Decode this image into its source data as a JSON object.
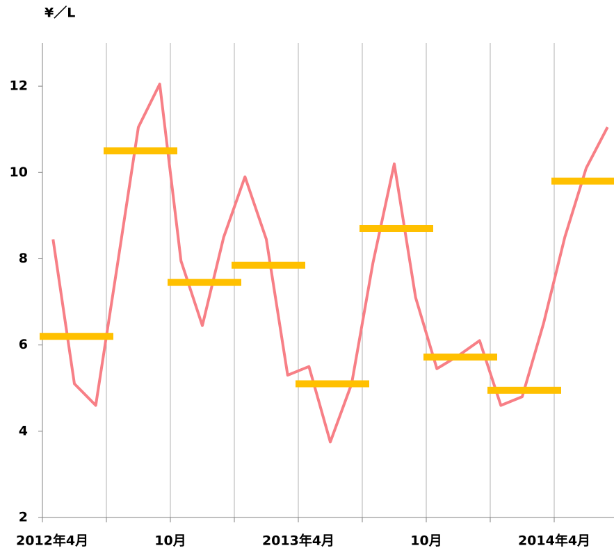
{
  "chart_data": {
    "type": "line",
    "y_label": "¥／L",
    "x": [
      "2012-04",
      "2012-05",
      "2012-06",
      "2012-07",
      "2012-08",
      "2012-09",
      "2012-10",
      "2012-11",
      "2012-12",
      "2013-01",
      "2013-02",
      "2013-03",
      "2013-04",
      "2013-05",
      "2013-06",
      "2013-07",
      "2013-08",
      "2013-09",
      "2013-10",
      "2013-11",
      "2013-12",
      "2014-01",
      "2014-02",
      "2014-03",
      "2014-04",
      "2014-05",
      "2014-06"
    ],
    "series": [
      {
        "color": "#f77f86",
        "values": [
          8.45,
          5.1,
          4.6,
          7.8,
          11.05,
          12.05,
          7.95,
          6.45,
          8.5,
          9.9,
          8.45,
          5.3,
          5.5,
          3.75,
          5.1,
          7.9,
          10.2,
          7.1,
          5.45,
          5.75,
          6.1,
          4.6,
          4.8,
          6.5,
          8.5,
          10.1,
          11.05
        ]
      },
      {
        "color": "#ffc000",
        "x": [
          "2012-04",
          "2012-07",
          "2012-10",
          "2013-01",
          "2013-04",
          "2013-07",
          "2013-10",
          "2014-01",
          "2014-04"
        ],
        "values": [
          6.2,
          10.5,
          7.45,
          7.85,
          5.1,
          8.7,
          5.72,
          4.95,
          9.8
        ]
      }
    ],
    "xlim": [
      "2012-04",
      "2014-07"
    ],
    "xticks": [
      {
        "value": "2012-04",
        "label": "2012年4月"
      },
      {
        "value": "2012-07",
        "label": null
      },
      {
        "value": "2012-10",
        "label": "10月"
      },
      {
        "value": "2013-01",
        "label": null
      },
      {
        "value": "2013-04",
        "label": "2013年4月"
      },
      {
        "value": "2013-07",
        "label": null
      },
      {
        "value": "2013-10",
        "label": "10月"
      },
      {
        "value": "2014-01",
        "label": null
      },
      {
        "value": "2014-04",
        "label": "2014年4月"
      }
    ],
    "ylim": [
      2,
      13
    ],
    "yticks": [
      2,
      4,
      6,
      8,
      10,
      12
    ],
    "grid": true
  }
}
